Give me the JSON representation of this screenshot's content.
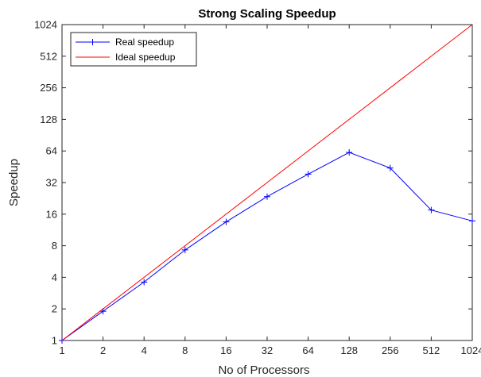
{
  "chart_data": {
    "type": "line",
    "title": "Strong Scaling Speedup",
    "xlabel": "No of Processors",
    "ylabel": "Speedup",
    "xscale": "log2",
    "yscale": "log2",
    "x_ticks": [
      1,
      2,
      4,
      8,
      16,
      32,
      64,
      128,
      256,
      512,
      1024
    ],
    "y_ticks": [
      1,
      2,
      4,
      8,
      16,
      32,
      64,
      128,
      256,
      512,
      1024
    ],
    "xlim": [
      1,
      1024
    ],
    "ylim": [
      1,
      1024
    ],
    "grid": false,
    "legend_position": "top-left",
    "series": [
      {
        "name": "Real speedup",
        "color": "#0000ff",
        "marker": "plus",
        "x": [
          1,
          2,
          4,
          8,
          16,
          32,
          64,
          128,
          256,
          512,
          1024
        ],
        "y": [
          1,
          1.9,
          3.6,
          7.3,
          13.5,
          23.5,
          38.5,
          62,
          44,
          17.5,
          13.8
        ]
      },
      {
        "name": "Ideal speedup",
        "color": "#ff0000",
        "marker": "none",
        "x": [
          1,
          1024
        ],
        "y": [
          1,
          1024
        ]
      }
    ]
  }
}
